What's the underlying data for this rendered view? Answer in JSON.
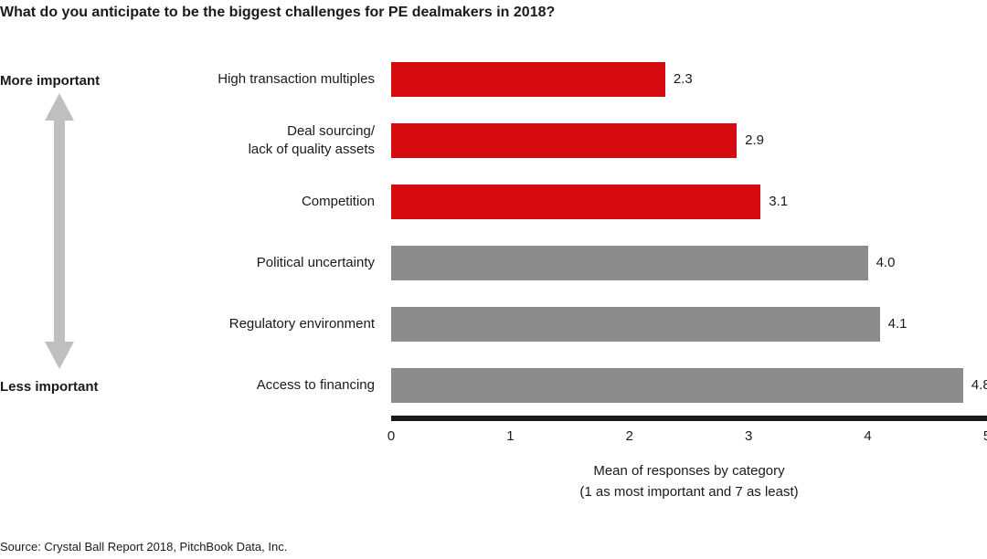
{
  "title": "What do you anticipate to be the biggest challenges for PE dealmakers in 2018?",
  "importance_axis": {
    "top_label": "More important",
    "bottom_label": "Less important"
  },
  "chart_data": {
    "type": "bar",
    "orientation": "horizontal",
    "categories": [
      "High transaction multiples",
      "Deal sourcing/\nlack of quality assets",
      "Competition",
      "Political uncertainty",
      "Regulatory environment",
      "Access to financing"
    ],
    "values": [
      2.3,
      2.9,
      3.1,
      4.0,
      4.1,
      4.8
    ],
    "value_labels": [
      "2.3",
      "2.9",
      "3.1",
      "4.0",
      "4.1",
      "4.8"
    ],
    "bar_colors": [
      "#d50a0e",
      "#d50a0e",
      "#d50a0e",
      "#8c8c8c",
      "#8c8c8c",
      "#8c8c8c"
    ],
    "xlim": [
      0,
      5
    ],
    "xticks": [
      "0",
      "1",
      "2",
      "3",
      "4",
      "5"
    ],
    "grid": false,
    "legend": "none",
    "xlabel_line1": "Mean of responses by category",
    "xlabel_line2": "(1 as most important and 7 as least)"
  },
  "source": "Source: Crystal Ball Report 2018, PitchBook Data, Inc.",
  "colors": {
    "red": "#d50a0e",
    "gray": "#8c8c8c",
    "arrow": "#bfbfbf",
    "axis": "#1a1a1a"
  }
}
